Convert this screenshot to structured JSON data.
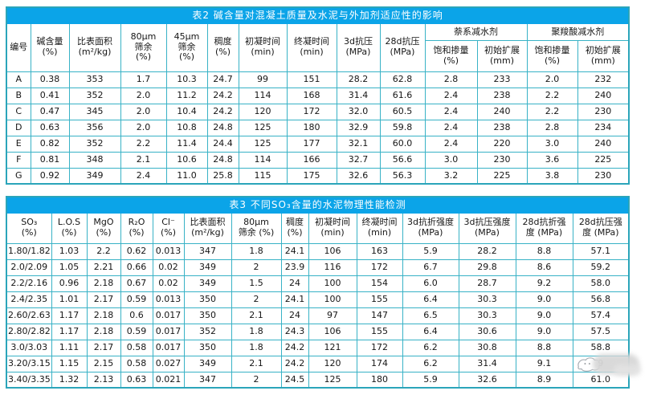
{
  "colors": {
    "title_bar": "#0ba4e8",
    "title_text": "#ffffff",
    "grid_line": "#38b2c6",
    "outer_border": "#2ba5ba",
    "cell_text": "#161616",
    "watermark_blur": "#d7d7d7"
  },
  "table2": {
    "title": "表2  碱含量对混凝土质量及水泥与外加剂适应性的影响",
    "plain_headers": [
      [
        "编号"
      ],
      [
        "碱含量",
        "(%)"
      ],
      [
        "比表面积",
        "(m²/kg)"
      ],
      [
        "80μm",
        "筛余",
        "(%)"
      ],
      [
        "45μm",
        "筛余",
        "(%)"
      ],
      [
        "稠度",
        "(%)"
      ],
      [
        "初凝时间",
        "(min)"
      ],
      [
        "终凝时间",
        "(min)"
      ],
      [
        "3d抗压",
        "(MPa)"
      ],
      [
        "28d抗压",
        "(MPa)"
      ]
    ],
    "groups": [
      {
        "label": "萘系减水剂",
        "children": [
          [
            "饱和掺量",
            "(%)"
          ],
          [
            "初始扩展",
            "(mm)"
          ]
        ]
      },
      {
        "label": "聚羧酸减水剂",
        "children": [
          [
            "饱和掺量",
            "(%)"
          ],
          [
            "初始扩展",
            "(mm)"
          ]
        ]
      }
    ],
    "rows": [
      [
        "A",
        "0.38",
        "353",
        "1.7",
        "10.3",
        "24.7",
        "99",
        "151",
        "28.2",
        "62.8",
        "2.8",
        "233",
        "2.0",
        "232"
      ],
      [
        "B",
        "0.41",
        "352",
        "2.0",
        "11.2",
        "24.2",
        "114",
        "168",
        "31.4",
        "61.6",
        "2.4",
        "238",
        "2.2",
        "240"
      ],
      [
        "C",
        "0.47",
        "345",
        "2.0",
        "10.4",
        "24.2",
        "120",
        "172",
        "32.0",
        "60.5",
        "2.4",
        "240",
        "2.2",
        "230"
      ],
      [
        "D",
        "0.63",
        "356",
        "2.0",
        "10.8",
        "24.8",
        "125",
        "180",
        "32.9",
        "59.8",
        "2.4",
        "238",
        "2.8",
        "234"
      ],
      [
        "E",
        "0.82",
        "352",
        "2.2",
        "11.4",
        "24.4",
        "125",
        "177",
        "32.1",
        "60.0",
        "2.4",
        "220",
        "3.0",
        "240"
      ],
      [
        "F",
        "0.81",
        "348",
        "2.1",
        "10.6",
        "24.8",
        "114",
        "166",
        "32.7",
        "56.6",
        "3.0",
        "230",
        "3.6",
        "225"
      ],
      [
        "G",
        "0.92",
        "349",
        "2.4",
        "11.0",
        "25.8",
        "115",
        "175",
        "32.6",
        "56.3",
        "3.2",
        "225",
        "3.8",
        "230"
      ]
    ]
  },
  "table3": {
    "title": "表3  不同SO₃含量的水泥物理性能检测",
    "headers": [
      [
        "SO₃",
        "(%)"
      ],
      [
        "L.O.S",
        "(%)"
      ],
      [
        "MgO",
        "(%)"
      ],
      [
        "R₂O",
        "(%)"
      ],
      [
        "Cl⁻",
        "(%)"
      ],
      [
        "比表面积",
        "(m²/kg)"
      ],
      [
        "80μm",
        "筛余 (%)"
      ],
      [
        "稠度",
        "(%)"
      ],
      [
        "初凝时间",
        "(min)"
      ],
      [
        "终凝时间",
        "(min)"
      ],
      [
        "3d抗折强度",
        "(MPa)"
      ],
      [
        "3d抗压强度",
        "(MPa)"
      ],
      [
        "28d抗折强",
        "度 (MPa)"
      ],
      [
        "28d抗压强",
        "度 (MPa)"
      ]
    ],
    "rows": [
      [
        "1.80/1.82",
        "1.03",
        "2.2",
        "0.62",
        "0.013",
        "347",
        "1.8",
        "24.1",
        "106",
        "163",
        "5.9",
        "28.2",
        "8.8",
        "57.1"
      ],
      [
        "2.0/2.09",
        "1.05",
        "2.21",
        "0.66",
        "0.02",
        "349",
        "2",
        "23.9",
        "116",
        "172",
        "6.7",
        "29.8",
        "8.6",
        "59.2"
      ],
      [
        "2.2/2.16",
        "0.96",
        "2.18",
        "0.67",
        "0.02",
        "349",
        "1.5",
        "24",
        "100",
        "154",
        "6.0",
        "28.7",
        "9.2",
        "58.0"
      ],
      [
        "2.4/2.35",
        "1.01",
        "2.17",
        "0.59",
        "0.013",
        "350",
        "2",
        "24.1",
        "100",
        "155",
        "6.4",
        "30.3",
        "9.0",
        "56.8"
      ],
      [
        "2.60/2.63",
        "1.17",
        "2.18",
        "0.6",
        "0.017",
        "350",
        "2.1",
        "24",
        "97",
        "147",
        "6.5",
        "30.3",
        "9.0",
        "57.4"
      ],
      [
        "2.80/2.82",
        "1.17",
        "2.18",
        "0.59",
        "0.017",
        "352",
        "1.8",
        "24.3",
        "106",
        "155",
        "6.4",
        "30.6",
        "9.0",
        "57.5"
      ],
      [
        "3.0/3.03",
        "1.11",
        "2.17",
        "0.58",
        "0.017",
        "350",
        "1.8",
        "24.2",
        "121",
        "172",
        "6.2",
        "30.8",
        "8.8",
        "58.8"
      ],
      [
        "3.20/3.15",
        "1.15",
        "2.15",
        "0.58",
        "0.027",
        "349",
        "2.1",
        "24.2",
        "120",
        "174",
        "6.2",
        "31.4",
        "9.1",
        "9"
      ],
      [
        "3.40/3.35",
        "1.32",
        "2.13",
        "0.63",
        "0.021",
        "347",
        "2",
        "24.5",
        "125",
        "180",
        "5.9",
        "32.6",
        "8.9",
        "61.0"
      ]
    ],
    "obscured_cell": {
      "row_index": 7,
      "col_index": 13,
      "visible_fragment": "9",
      "covered_by": "watermark"
    }
  }
}
